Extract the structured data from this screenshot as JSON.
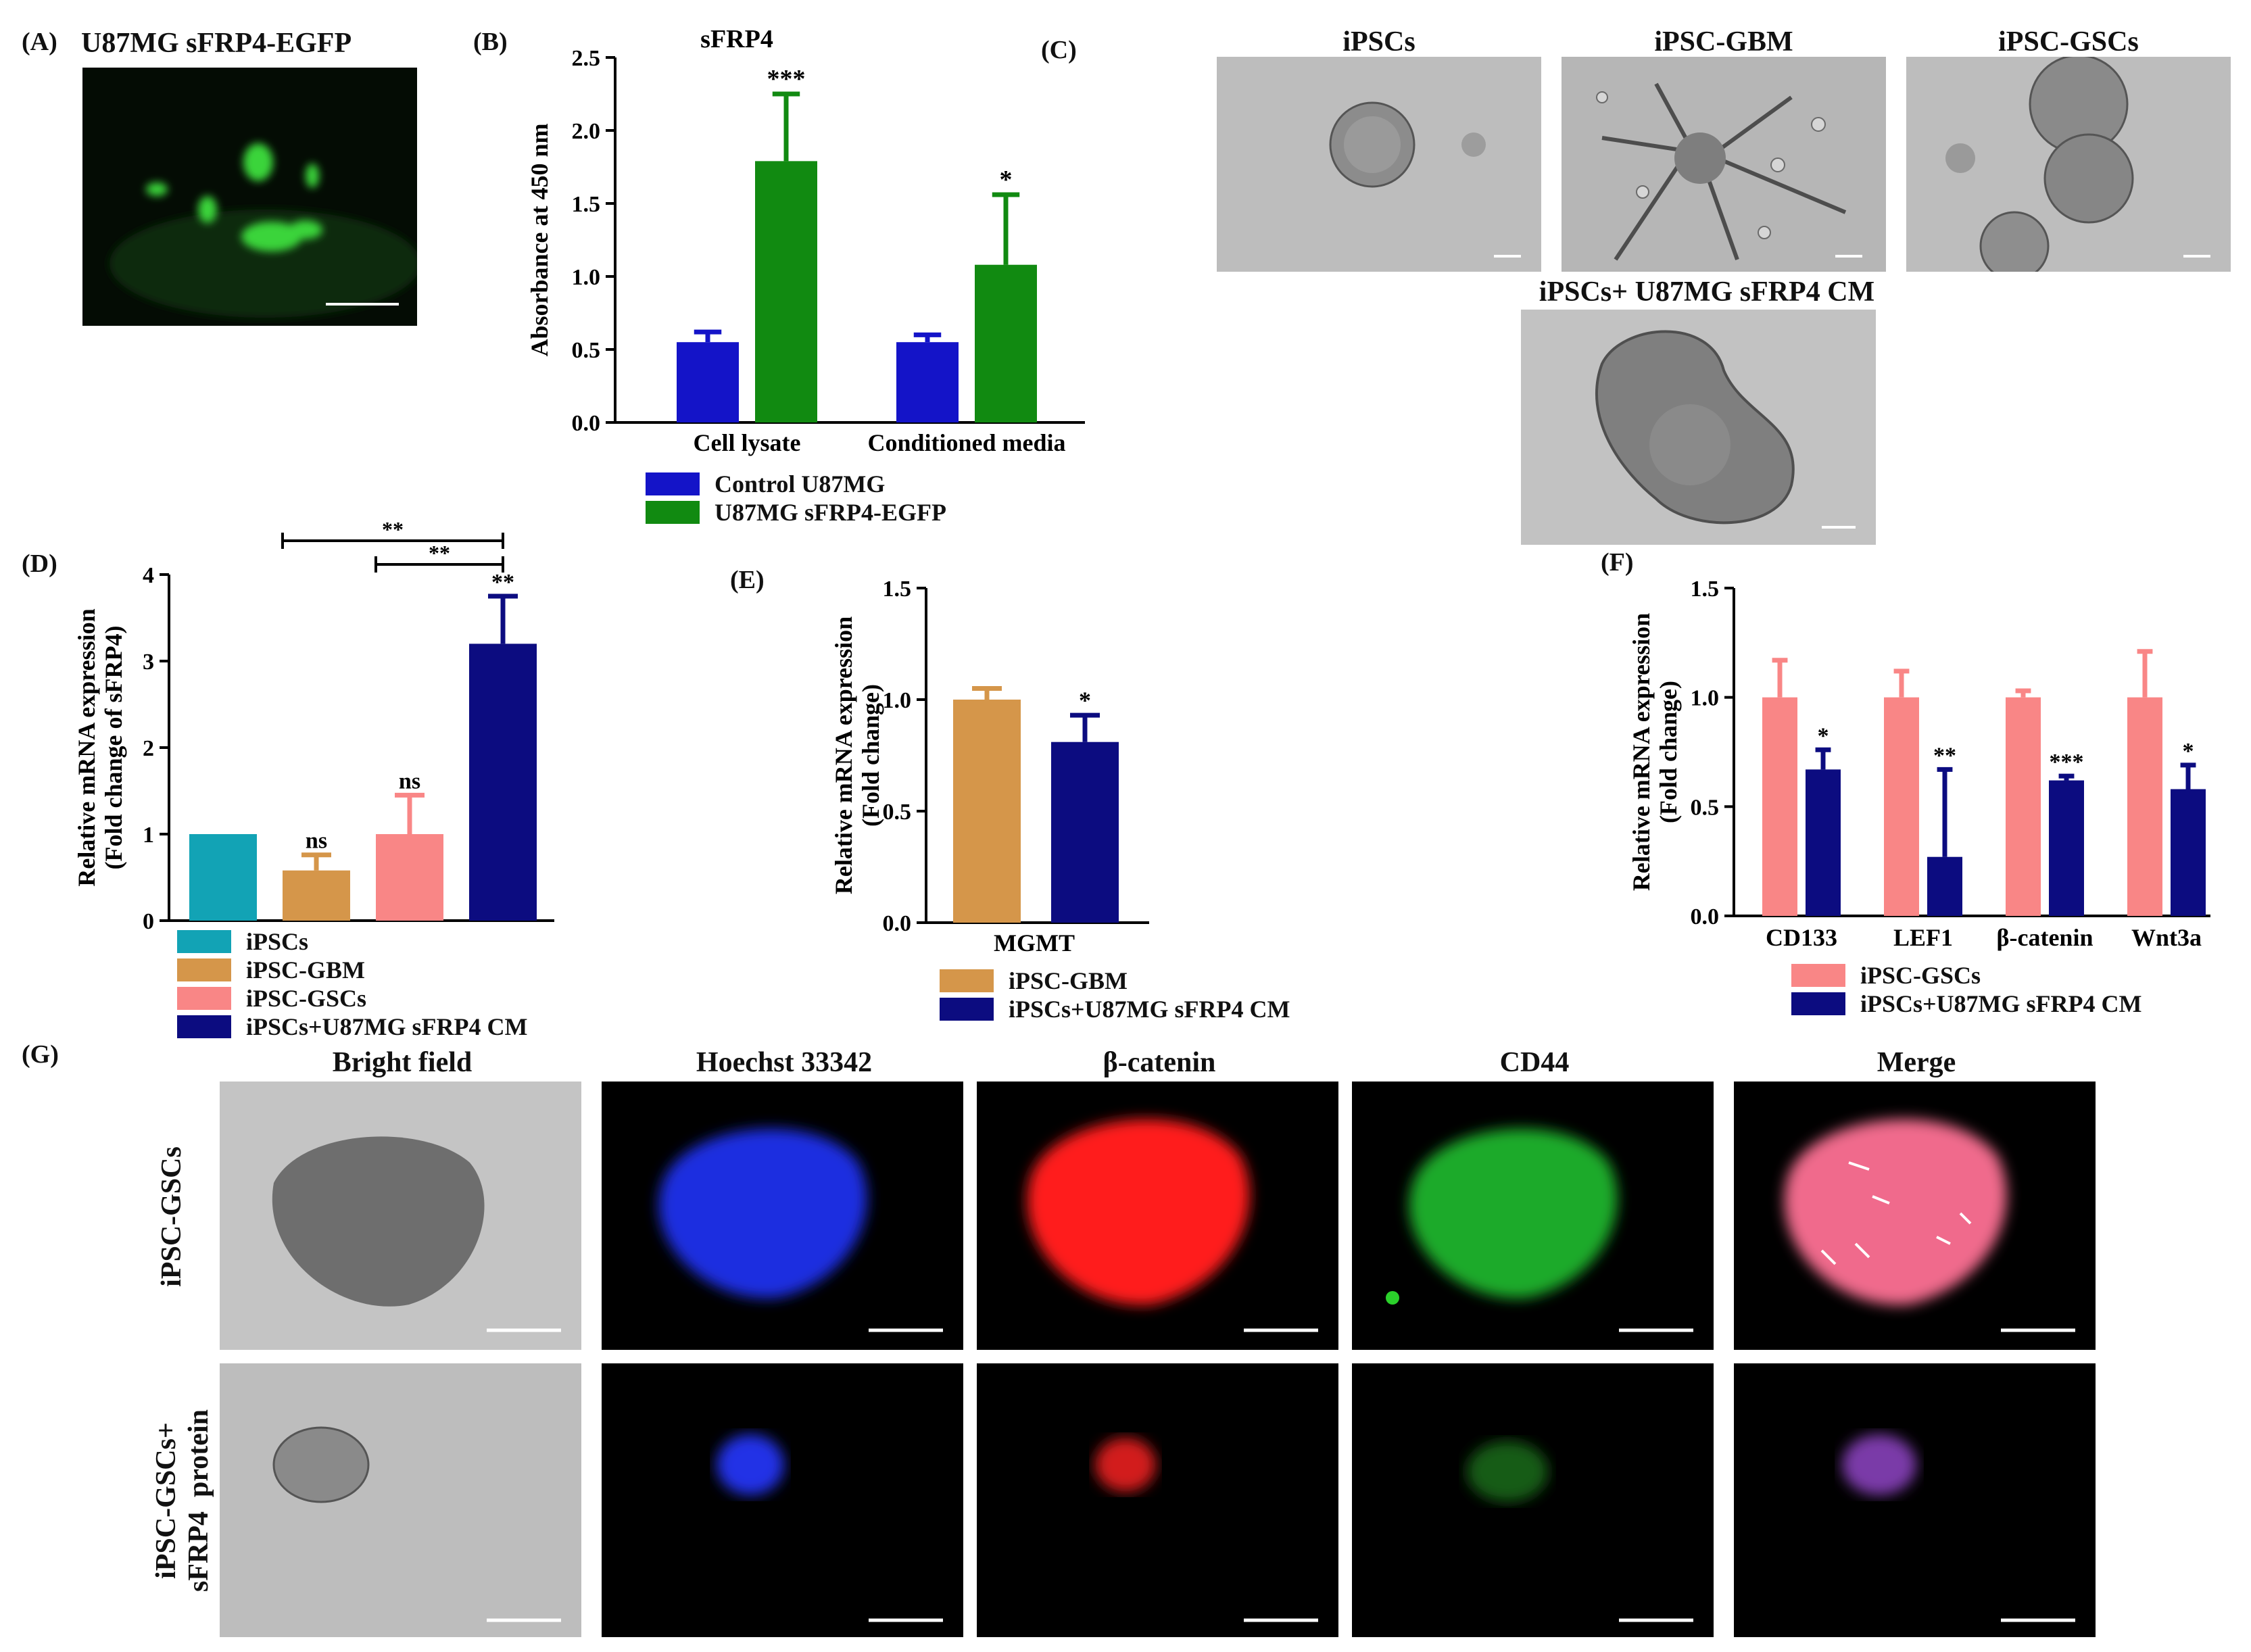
{
  "panels": {
    "A": {
      "label": "(A)",
      "title": "U87MG sFRP4-EGFP"
    },
    "B": {
      "label": "(B)",
      "legend": [
        {
          "name": "Control U87MG",
          "color": "#1414c8"
        },
        {
          "name": "U87MG sFRP4-EGFP",
          "color": "#118a11"
        }
      ]
    },
    "C": {
      "label": "(C)",
      "images": [
        "iPSCs",
        "iPSC-GBM",
        "iPSC-GSCs",
        "iPSCs+ U87MG sFRP4 CM"
      ]
    },
    "D": {
      "label": "(D)",
      "legend": [
        {
          "name": "iPSCs",
          "color": "#12a3b5"
        },
        {
          "name": "iPSC-GBM",
          "color": "#d5964a"
        },
        {
          "name": "iPSC-GSCs",
          "color": "#f98686"
        },
        {
          "name": "iPSCs+U87MG sFRP4 CM",
          "color": "#0c0c80"
        }
      ]
    },
    "E": {
      "label": "(E)",
      "legend": [
        {
          "name": "iPSC-GBM",
          "color": "#d5964a"
        },
        {
          "name": "iPSCs+U87MG sFRP4 CM",
          "color": "#0c0c80"
        }
      ]
    },
    "F": {
      "label": "(F)",
      "legend": [
        {
          "name": "iPSC-GSCs",
          "color": "#f98686"
        },
        {
          "name": "iPSCs+U87MG sFRP4 CM",
          "color": "#0c0c80"
        }
      ]
    },
    "G": {
      "label": "(G)",
      "columns": [
        "Bright field",
        "Hoechst 33342",
        "β-catenin",
        "CD44",
        "Merge"
      ],
      "rows": [
        "iPSC-GSCs",
        "iPSC-GSCs+\nsFRP4  protein"
      ]
    }
  },
  "chart_data": [
    {
      "id": "B",
      "type": "bar",
      "title": "sFRP4",
      "ylabel": "Absorbance at 450 nm",
      "ylim": [
        0,
        2.5
      ],
      "yticks": [
        "0.0",
        "0.5",
        "1.0",
        "1.5",
        "2.0",
        "2.5"
      ],
      "categories": [
        "Cell lysate",
        "Conditioned media"
      ],
      "series": [
        {
          "name": "Control U87MG",
          "values": [
            0.55,
            0.55
          ],
          "errors": [
            0.07,
            0.05
          ],
          "sig": [
            "",
            ""
          ]
        },
        {
          "name": "U87MG sFRP4-EGFP",
          "values": [
            1.79,
            1.08
          ],
          "errors": [
            0.46,
            0.48
          ],
          "sig": [
            "***",
            "*"
          ]
        }
      ]
    },
    {
      "id": "D",
      "type": "bar",
      "ylabel": "Relative mRNA expression\n(Fold change of sFRP4)",
      "ylim": [
        0,
        4
      ],
      "yticks": [
        "0",
        "1",
        "2",
        "3",
        "4"
      ],
      "categories": [
        "iPSCs",
        "iPSC-GBM",
        "iPSC-GSCs",
        "iPSCs+U87MG sFRP4 CM"
      ],
      "values": [
        1.0,
        0.58,
        1.0,
        3.2
      ],
      "errors": [
        0.0,
        0.18,
        0.45,
        0.55
      ],
      "sig": [
        "",
        "ns",
        "ns",
        "**"
      ],
      "brackets": [
        "**",
        "**"
      ]
    },
    {
      "id": "E",
      "type": "bar",
      "ylabel": "Relative mRNA expression\n(Fold change)",
      "ylim": [
        0,
        1.5
      ],
      "yticks": [
        "0.0",
        "0.5",
        "1.0",
        "1.5"
      ],
      "categories": [
        "MGMT"
      ],
      "series": [
        {
          "name": "iPSC-GBM",
          "values": [
            1.0
          ],
          "errors": [
            0.05
          ],
          "sig": [
            ""
          ]
        },
        {
          "name": "iPSCs+U87MG sFRP4 CM",
          "values": [
            0.81
          ],
          "errors": [
            0.12
          ],
          "sig": [
            "*"
          ]
        }
      ]
    },
    {
      "id": "F",
      "type": "bar",
      "ylabel": "Relative mRNA expression\n(Fold change)",
      "ylim": [
        0,
        1.5
      ],
      "yticks": [
        "0.0",
        "0.5",
        "1.0",
        "1.5"
      ],
      "categories": [
        "CD133",
        "LEF1",
        "β-catenin",
        "Wnt3a"
      ],
      "series": [
        {
          "name": "iPSC-GSCs",
          "values": [
            1.0,
            1.0,
            1.0,
            1.0
          ],
          "errors": [
            0.17,
            0.12,
            0.03,
            0.21
          ],
          "sig": [
            "",
            "",
            "",
            ""
          ]
        },
        {
          "name": "iPSCs+U87MG sFRP4 CM",
          "values": [
            0.67,
            0.27,
            0.62,
            0.58
          ],
          "errors": [
            0.09,
            0.4,
            0.02,
            0.11
          ],
          "sig": [
            "*",
            "**",
            "***",
            "*"
          ]
        }
      ]
    }
  ]
}
